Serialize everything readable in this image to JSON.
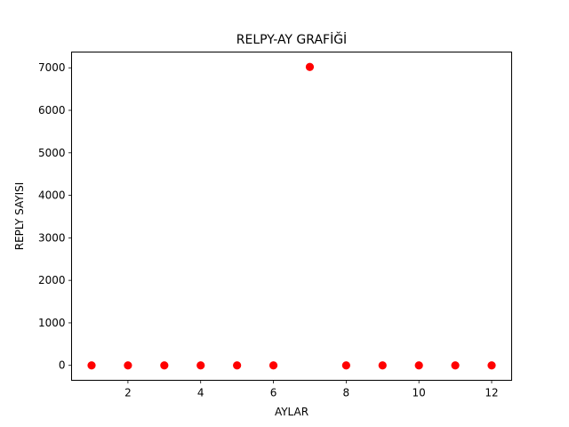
{
  "chart_data": {
    "type": "scatter",
    "title": "RELPY-AY GRAFİĞİ",
    "xlabel": "AYLAR",
    "ylabel": "REPLY SAYISI",
    "x": [
      1,
      2,
      3,
      4,
      5,
      6,
      7,
      8,
      9,
      10,
      11,
      12
    ],
    "y": [
      0,
      0,
      0,
      0,
      0,
      0,
      7020,
      0,
      0,
      0,
      0,
      0
    ],
    "xlim": [
      0.45,
      12.55
    ],
    "ylim": [
      -351,
      7371
    ],
    "xticks": [
      2,
      4,
      6,
      8,
      10,
      12
    ],
    "yticks": [
      0,
      1000,
      2000,
      3000,
      4000,
      5000,
      6000,
      7000
    ],
    "marker_color": "#ff0000",
    "grid": false,
    "legend": "none"
  }
}
